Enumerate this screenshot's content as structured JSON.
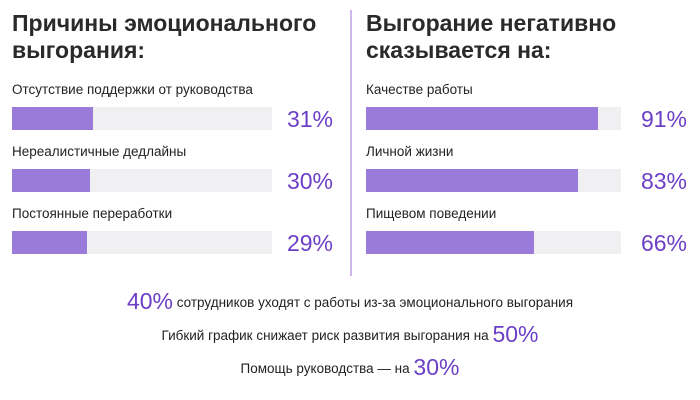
{
  "chart_data": [
    {
      "type": "bar",
      "orientation": "horizontal",
      "title": "Причины эмоционального выгорания:",
      "categories": [
        "Отсутствие поддержки от руководства",
        "Нереалистичные дедлайны",
        "Постоянные переработки"
      ],
      "values": [
        31,
        30,
        29
      ],
      "value_labels": [
        "31%",
        "30%",
        "29%"
      ],
      "xlim": [
        0,
        100
      ],
      "color": "#9b7bd9",
      "track_color": "#f0eff2",
      "label_color": "#6b3fc6"
    },
    {
      "type": "bar",
      "orientation": "horizontal",
      "title": "Выгорание негативно сказывается на:",
      "categories": [
        "Качестве работы",
        "Личной жизни",
        "Пищевом поведении"
      ],
      "values": [
        91,
        83,
        66
      ],
      "value_labels": [
        "91%",
        "83%",
        "66%"
      ],
      "xlim": [
        0,
        100
      ],
      "color": "#9b7bd9",
      "track_color": "#f0eff2",
      "label_color": "#6b3fc6"
    }
  ],
  "footer": {
    "lines": [
      {
        "stat": "40%",
        "text": "сотрудников уходят с работы из-за эмоционального выгорания",
        "stat_position": "before"
      },
      {
        "stat": "50%",
        "text": "Гибкий график снижает риск развития выгорания на",
        "stat_position": "after"
      },
      {
        "stat": "30%",
        "text": "Помощь руководства — на",
        "stat_position": "after"
      }
    ],
    "stat_color": "#6b3fc6"
  }
}
